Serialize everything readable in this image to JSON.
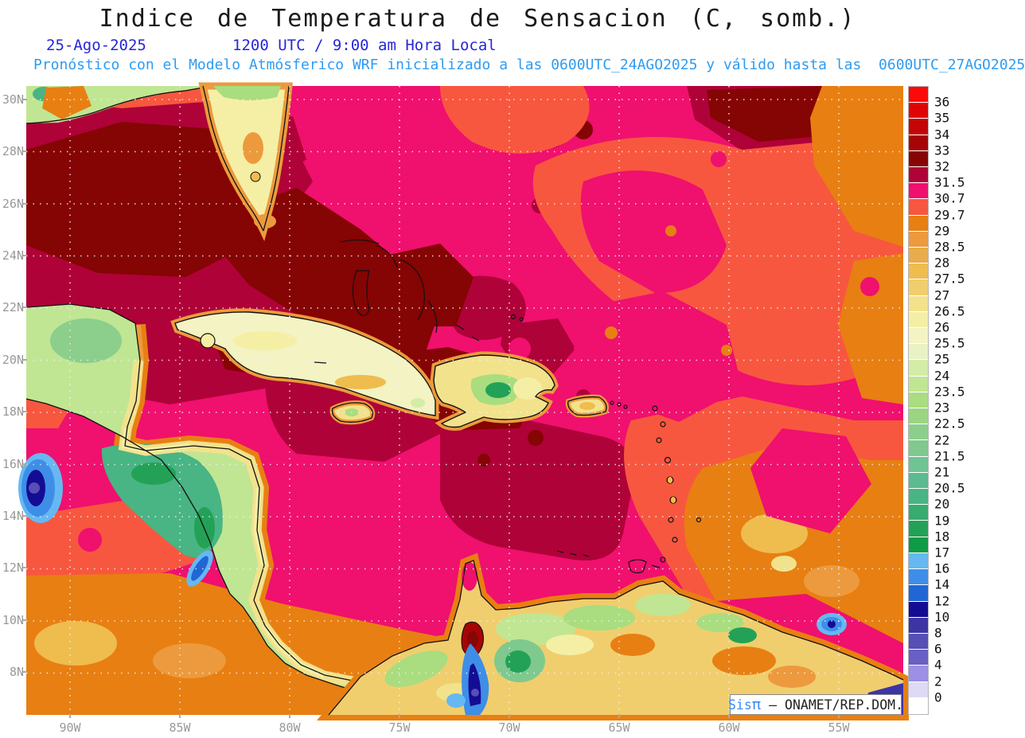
{
  "header": {
    "title": "Indice de Temperatura de Sensacion (C, somb.)",
    "date": "25-Ago-2025",
    "time": "1200 UTC / 9:00 am Hora Local",
    "forecast_note": "Pronóstico con el Modelo Atmósferico WRF inicializado a las 0600UTC_24AGO2025 y válido hasta las  0600UTC_27AGO2025",
    "title_color": "#1a1a1a",
    "datetime_color": "#2727d8",
    "note_color": "#2e9bf0"
  },
  "map": {
    "lat_labels": [
      "30N",
      "28N",
      "26N",
      "24N",
      "22N",
      "20N",
      "18N",
      "16N",
      "14N",
      "12N",
      "10N",
      "8N"
    ],
    "lon_labels": [
      "90W",
      "85W",
      "80W",
      "75W",
      "70W",
      "65W",
      "60W",
      "55W"
    ],
    "axis_color": "#999999",
    "base_color": "#F0106E",
    "gridline_style": "dotted"
  },
  "legend": {
    "title": "heat-index-scale-celsius",
    "labels": [
      "36",
      "35",
      "34",
      "33",
      "32",
      "31.5",
      "30.7",
      "29.7",
      "29",
      "28.5",
      "28",
      "27.5",
      "27",
      "26.5",
      "26",
      "25.5",
      "25",
      "24",
      "23.5",
      "23",
      "22.5",
      "22",
      "21.5",
      "21",
      "20.5",
      "20",
      "19",
      "18",
      "17",
      "16",
      "14",
      "12",
      "10",
      "8",
      "6",
      "4",
      "2",
      "0"
    ],
    "colors": [
      "#FA0A0A",
      "#E00505",
      "#C40505",
      "#A60505",
      "#870505",
      "#AF0238",
      "#F0106E",
      "#F8573F",
      "#E87F12",
      "#EC9A3D",
      "#E8AC4E",
      "#EFBC4E",
      "#F0CE6E",
      "#F2E28C",
      "#F5EFA5",
      "#F3F3C3",
      "#E9F2C3",
      "#D3EDA7",
      "#C0E693",
      "#A9DD7F",
      "#9BD581",
      "#8CCE8C",
      "#7FC98F",
      "#6FC394",
      "#5BBA8F",
      "#49B484",
      "#37AC6E",
      "#23A257",
      "#0F9A46",
      "#66B8F2",
      "#3E8EE8",
      "#2166D4",
      "#150C94",
      "#3D35A4",
      "#574EB6",
      "#6A5FC4",
      "#9C8FE4",
      "#DEDAF6",
      "#FFFFFF"
    ]
  },
  "branding": {
    "sis": "Sis",
    "pi": "π",
    "rest": " – ONAMET/REP.DOM."
  }
}
